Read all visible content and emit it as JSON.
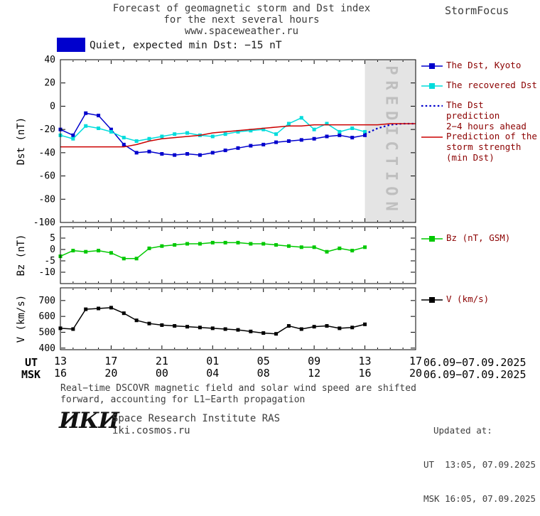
{
  "header": {
    "title_line1": "Forecast of geomagnetic storm and Dst index",
    "title_line2": "for the next several hours",
    "title_line3": "www.spaceweather.ru",
    "brand": "StormFocus"
  },
  "status": {
    "label": "Quiet, expected min Dst: −15 nT",
    "swatch_color": "#0000cd"
  },
  "xaxis": {
    "ut_label": "UT",
    "msk_label": "MSK",
    "ut_date": "06.09−07.09.2025",
    "msk_date": "06.09−07.09.2025"
  },
  "chart_data": {
    "type": "line",
    "x_unit": "hours since 13:00 UT 06.09.2025",
    "xlim": [
      0,
      28
    ],
    "xtick_hours": [
      0,
      4,
      8,
      12,
      16,
      20,
      24,
      28
    ],
    "xtick_labels_ut": [
      "13",
      "17",
      "21",
      "01",
      "05",
      "09",
      "13",
      "17"
    ],
    "xtick_labels_msk": [
      "16",
      "20",
      "00",
      "04",
      "08",
      "12",
      "16",
      "20"
    ],
    "panels": [
      {
        "ylabel": "Dst (nT)",
        "ylim": [
          -100,
          40
        ],
        "yticks": [
          40,
          20,
          0,
          -20,
          -40,
          -60,
          -80,
          -100
        ],
        "band": {
          "label": "PREDICTION",
          "from": 24,
          "to": 28,
          "fill": "#e4e4e4",
          "text_color": "#bfbfbf"
        },
        "series": [
          {
            "name": "The Dst, Kyoto",
            "color": "#0000cd",
            "marker": "square",
            "x": [
              0,
              1,
              2,
              3,
              4,
              5,
              6,
              7,
              8,
              9,
              10,
              11,
              12,
              13,
              14,
              15,
              16,
              17,
              18,
              19,
              20,
              21,
              22,
              23,
              24
            ],
            "values": [
              -20,
              -25,
              -6,
              -8,
              -20,
              -33,
              -40,
              -39,
              -41,
              -42,
              -41,
              -42,
              -40,
              -38,
              -36,
              -34,
              -33,
              -31,
              -30,
              -29,
              -28,
              -26,
              -25,
              -27,
              -25
            ]
          },
          {
            "name": "The recovered Dst",
            "color": "#00dcdc",
            "marker": "square",
            "x": [
              0,
              1,
              2,
              3,
              4,
              5,
              6,
              7,
              8,
              9,
              10,
              11,
              12,
              13,
              14,
              15,
              16,
              17,
              18,
              19,
              20,
              21,
              22,
              23,
              24
            ],
            "values": [
              -25,
              -28,
              -17,
              -19,
              -22,
              -27,
              -30,
              -28,
              -26,
              -24,
              -23,
              -25,
              -26,
              -24,
              -22,
              -21,
              -20,
              -24,
              -15,
              -10,
              -20,
              -15,
              -22,
              -19,
              -22
            ]
          },
          {
            "name": "The Dst prediction 2−4 hours ahead",
            "color": "#0000cd",
            "style": "dotted",
            "x": [
              24,
              25,
              26,
              27,
              28
            ],
            "values": [
              -24,
              -19,
              -16,
              -15,
              -15
            ]
          },
          {
            "name": "Prediction of the storm strength (min Dst)",
            "color": "#cc0000",
            "x": [
              0,
              1,
              2,
              3,
              4,
              5,
              6,
              7,
              8,
              9,
              10,
              11,
              12,
              13,
              14,
              15,
              16,
              17,
              18,
              19,
              20,
              21,
              22,
              23,
              24,
              25,
              26,
              27,
              28
            ],
            "values": [
              -35,
              -35,
              -35,
              -35,
              -35,
              -35,
              -33,
              -30,
              -28,
              -27,
              -26,
              -25,
              -23,
              -22,
              -21,
              -20,
              -19,
              -18,
              -17,
              -17,
              -16,
              -16,
              -16,
              -16,
              -16,
              -16,
              -15,
              -15,
              -15
            ]
          }
        ]
      },
      {
        "ylabel": "Bz (nT)",
        "ylim": [
          -15,
          10
        ],
        "yticks": [
          5,
          0,
          -5,
          -10
        ],
        "series": [
          {
            "name": "Bz (nT, GSM)",
            "color": "#00c800",
            "marker": "square",
            "x": [
              0,
              1,
              2,
              3,
              4,
              5,
              6,
              7,
              8,
              9,
              10,
              11,
              12,
              13,
              14,
              15,
              16,
              17,
              18,
              19,
              20,
              21,
              22,
              23,
              24
            ],
            "values": [
              -3,
              -0.5,
              -1,
              -0.5,
              -1.5,
              -4,
              -4,
              0.5,
              1.5,
              2,
              2.5,
              2.5,
              3,
              3,
              3,
              2.5,
              2.5,
              2,
              1.5,
              1,
              1,
              -1,
              0.5,
              -0.5,
              1
            ]
          }
        ]
      },
      {
        "ylabel": "V (km/s)",
        "ylim": [
          390,
          780
        ],
        "yticks": [
          700,
          600,
          500,
          400
        ],
        "series": [
          {
            "name": "V (km/s)",
            "color": "#000000",
            "marker": "square",
            "x": [
              0,
              1,
              2,
              3,
              4,
              5,
              6,
              7,
              8,
              9,
              10,
              11,
              12,
              13,
              14,
              15,
              16,
              17,
              18,
              19,
              20,
              21,
              22,
              23,
              24
            ],
            "values": [
              525,
              520,
              645,
              650,
              655,
              620,
              575,
              555,
              545,
              540,
              535,
              530,
              525,
              520,
              515,
              505,
              495,
              490,
              540,
              520,
              535,
              540,
              525,
              530,
              550
            ]
          }
        ]
      }
    ]
  },
  "legend": [
    {
      "label": "The Dst, Kyoto",
      "color": "#0000cd",
      "style": "solid-square"
    },
    {
      "label": "The recovered Dst",
      "color": "#00dcdc",
      "style": "solid-square"
    },
    {
      "label": "The Dst prediction\n2−4 hours ahead",
      "color": "#0000cd",
      "style": "dotted"
    },
    {
      "label": "Prediction of the\nstorm strength\n(min Dst)",
      "color": "#cc0000",
      "style": "solid"
    },
    {
      "label": "Bz (nT, GSM)",
      "color": "#00c800",
      "style": "solid-square"
    },
    {
      "label": "V (km/s)",
      "color": "#000000",
      "style": "solid-square"
    }
  ],
  "footer": {
    "note_line1": "Real−time DSCOVR magnetic field and solar wind speed are shifted",
    "note_line2": "forward, accounting for L1−Earth propagation",
    "updated_label": "Updated at:",
    "updated_ut": "UT  13:05, 07.09.2025",
    "updated_msk": "MSK 16:05, 07.09.2025",
    "logo": "ИКИ",
    "institute": "Space Research Institute RAS",
    "site": "iki.cosmos.ru"
  }
}
